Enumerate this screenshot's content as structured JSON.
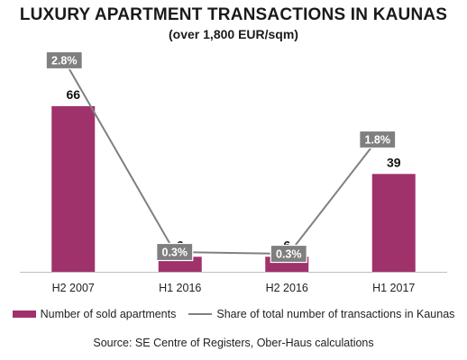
{
  "title": "LUXURY APARTMENT TRANSACTIONS IN KAUNAS",
  "subtitle": "(over 1,800 EUR/sqm)",
  "source": "Source: SE Centre of Registers, Ober-Haus calculations",
  "colors": {
    "bar": "#a0326b",
    "line": "#808080",
    "label_box": "#7f7f7f",
    "axis": "#bfbfbf"
  },
  "chart_data": {
    "type": "bar",
    "categories": [
      "H2 2007",
      "H1 2016",
      "H2 2016",
      "H1 2017"
    ],
    "ylim": [
      0,
      70
    ],
    "series": [
      {
        "name": "Number of sold apartments",
        "type": "bar",
        "values": [
          66,
          6,
          6,
          39
        ],
        "labels": [
          "66",
          "6",
          "6",
          "39"
        ]
      },
      {
        "name": "Share of total number of transactions in Kaunas",
        "type": "line",
        "values": [
          2.8,
          0.3,
          0.3,
          1.8
        ],
        "labels": [
          "2.8%",
          "0.3%",
          "0.3%",
          "1.8%"
        ],
        "ylim": [
          0,
          3.6
        ]
      }
    ],
    "legend_position": "bottom",
    "grid": false
  }
}
